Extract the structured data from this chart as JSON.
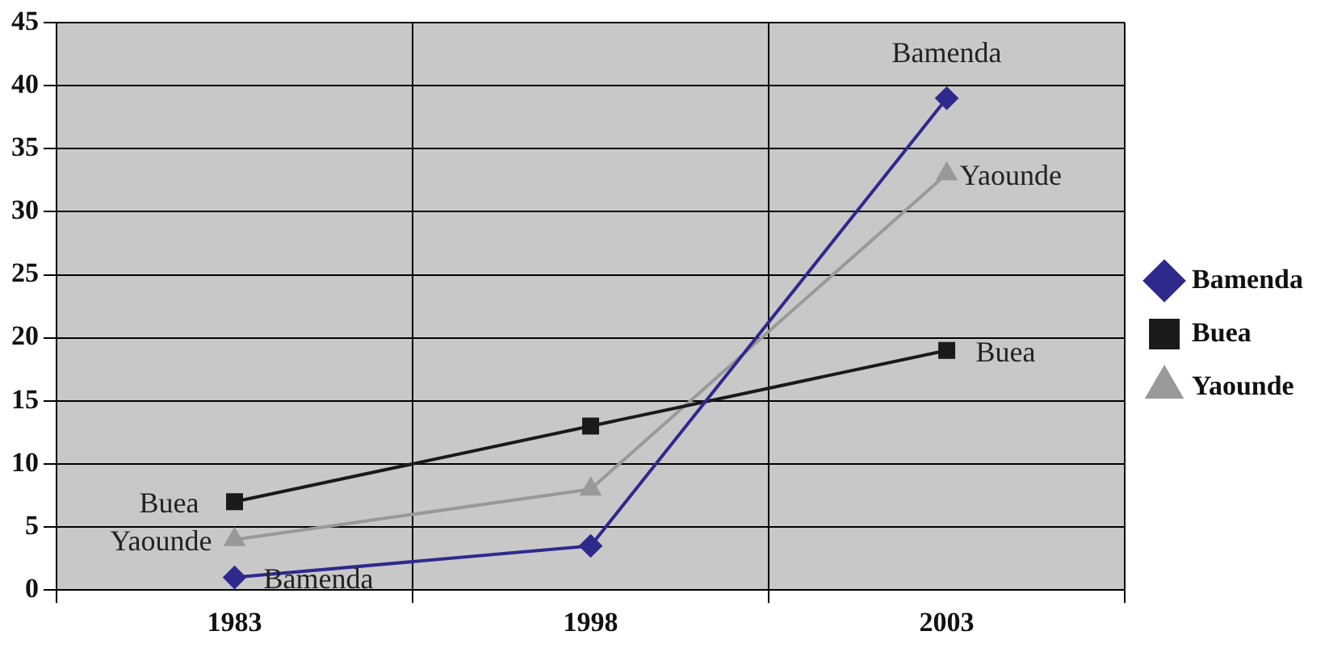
{
  "chart_data": {
    "type": "line",
    "categories": [
      "1983",
      "1998",
      "2003"
    ],
    "series": [
      {
        "name": "Bamenda",
        "color": "#2e2a8c",
        "marker": "diamond",
        "values": [
          1,
          3.5,
          39
        ]
      },
      {
        "name": "Buea",
        "color": "#1a1a1a",
        "marker": "square",
        "values": [
          7,
          13,
          19
        ]
      },
      {
        "name": "Yaounde",
        "color": "#999999",
        "marker": "triangle",
        "values": [
          4,
          8,
          33
        ]
      }
    ],
    "ylim": [
      0,
      45
    ],
    "yticks": [
      0,
      5,
      10,
      15,
      20,
      25,
      30,
      35,
      40,
      45
    ],
    "grid": true,
    "legend": "right",
    "annotations": [
      {
        "text": "Bamenda",
        "x": "1983",
        "y": 1
      },
      {
        "text": "Buea",
        "x": "1983",
        "y": 7
      },
      {
        "text": "Yaounde",
        "x": "1983",
        "y": 4
      },
      {
        "text": "Bamenda",
        "x": "2003",
        "y": 39
      },
      {
        "text": "Buea",
        "x": "2003",
        "y": 19
      },
      {
        "text": "Yaounde",
        "x": "2003",
        "y": 33
      }
    ]
  }
}
